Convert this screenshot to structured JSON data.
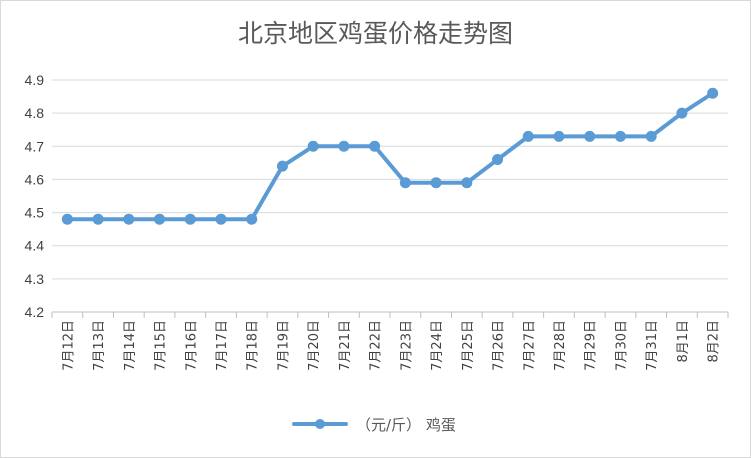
{
  "chart_data": {
    "type": "line",
    "title": "北京地区鸡蛋价格走势图",
    "categories": [
      "7月12日",
      "7月13日",
      "7月14日",
      "7月15日",
      "7月16日",
      "7月17日",
      "7月18日",
      "7月19日",
      "7月20日",
      "7月21日",
      "7月22日",
      "7月23日",
      "7月24日",
      "7月25日",
      "7月26日",
      "7月27日",
      "7月28日",
      "7月29日",
      "7月30日",
      "7月31日",
      "8月1日",
      "8月2日"
    ],
    "series": [
      {
        "name": "（元/斤） 鸡蛋",
        "values": [
          4.48,
          4.48,
          4.48,
          4.48,
          4.48,
          4.48,
          4.48,
          4.64,
          4.7,
          4.7,
          4.7,
          4.59,
          4.59,
          4.59,
          4.66,
          4.73,
          4.73,
          4.73,
          4.73,
          4.73,
          4.8,
          4.86
        ]
      }
    ],
    "yticks": [
      "4.9",
      "4.8",
      "4.7",
      "4.6",
      "4.5",
      "4.4",
      "4.3",
      "4.2"
    ],
    "ylim": [
      4.2,
      4.9
    ],
    "grid": true,
    "legend": "bottom",
    "colors": {
      "series": "#5b9bd5",
      "grid": "#d9d9d9",
      "axis": "#bfbfbf"
    }
  }
}
